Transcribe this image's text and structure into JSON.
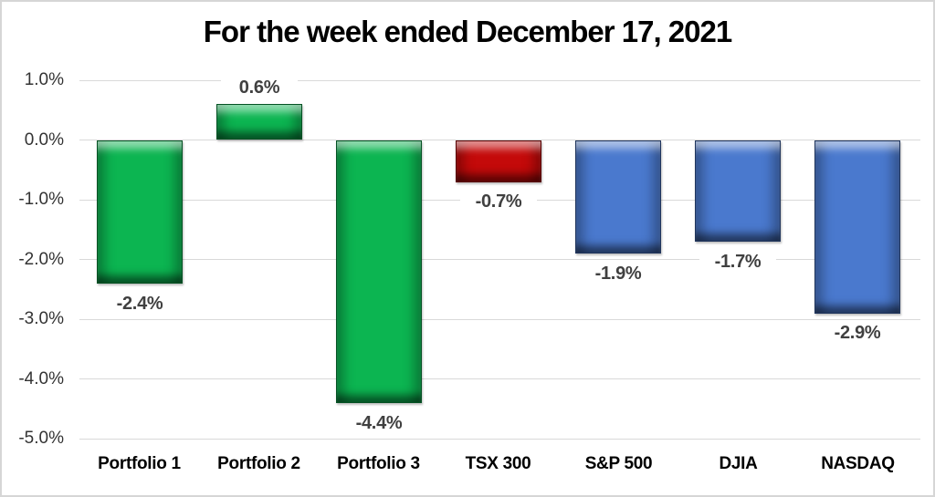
{
  "chart_data": {
    "type": "bar",
    "title": "For the week ended December 17, 2021",
    "categories": [
      "Portfolio 1",
      "Portfolio 2",
      "Portfolio 3",
      "TSX 300",
      "S&P 500",
      "DJIA",
      "NASDAQ"
    ],
    "values": [
      -2.4,
      0.6,
      -4.4,
      -0.7,
      -1.9,
      -1.7,
      -2.9
    ],
    "data_labels": [
      "-2.4%",
      "0.6%",
      "-4.4%",
      "-0.7%",
      "-1.9%",
      "-1.7%",
      "-2.9%"
    ],
    "bar_colors": [
      "#0cb551",
      "#0cb551",
      "#0cb551",
      "#c40a0a",
      "#4a79ce",
      "#4a79ce",
      "#4a79ce"
    ],
    "y_ticks": [
      "1.0%",
      "0.0%",
      "-1.0%",
      "-2.0%",
      "-3.0%",
      "-4.0%",
      "-5.0%"
    ],
    "y_tick_values": [
      1,
      0,
      -1,
      -2,
      -3,
      -4,
      -5
    ],
    "ylim": [
      -5,
      1
    ],
    "xlabel": "",
    "ylabel": "",
    "grid": true,
    "legend": "none",
    "bar_style": "beveled-3d",
    "gridline_color": "#d9d9d9",
    "frame_border_color": "#d6d6d6",
    "data_label_color": "#404040",
    "axis_tick_color": "#333333",
    "category_label_color": "#000000",
    "background_color": "#ffffff"
  }
}
